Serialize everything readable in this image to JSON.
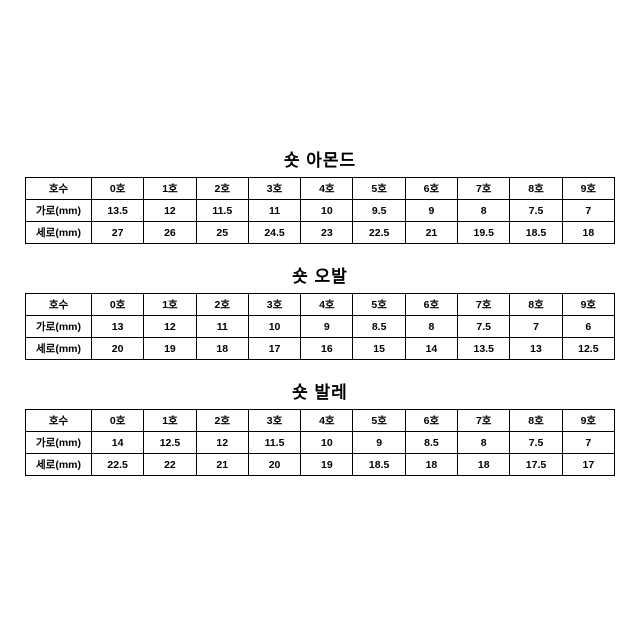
{
  "sections": [
    {
      "title": "숏 아몬드",
      "rows": [
        {
          "label": "호수",
          "values": [
            "0호",
            "1호",
            "2호",
            "3호",
            "4호",
            "5호",
            "6호",
            "7호",
            "8호",
            "9호"
          ]
        },
        {
          "label": "가로(mm)",
          "values": [
            "13.5",
            "12",
            "11.5",
            "11",
            "10",
            "9.5",
            "9",
            "8",
            "7.5",
            "7"
          ]
        },
        {
          "label": "세로(mm)",
          "values": [
            "27",
            "26",
            "25",
            "24.5",
            "23",
            "22.5",
            "21",
            "19.5",
            "18.5",
            "18"
          ]
        }
      ]
    },
    {
      "title": "숏 오발",
      "rows": [
        {
          "label": "호수",
          "values": [
            "0호",
            "1호",
            "2호",
            "3호",
            "4호",
            "5호",
            "6호",
            "7호",
            "8호",
            "9호"
          ]
        },
        {
          "label": "가로(mm)",
          "values": [
            "13",
            "12",
            "11",
            "10",
            "9",
            "8.5",
            "8",
            "7.5",
            "7",
            "6"
          ]
        },
        {
          "label": "세로(mm)",
          "values": [
            "20",
            "19",
            "18",
            "17",
            "16",
            "15",
            "14",
            "13.5",
            "13",
            "12.5"
          ]
        }
      ]
    },
    {
      "title": "숏 발레",
      "rows": [
        {
          "label": "호수",
          "values": [
            "0호",
            "1호",
            "2호",
            "3호",
            "4호",
            "5호",
            "6호",
            "7호",
            "8호",
            "9호"
          ]
        },
        {
          "label": "가로(mm)",
          "values": [
            "14",
            "12.5",
            "12",
            "11.5",
            "10",
            "9",
            "8.5",
            "8",
            "7.5",
            "7"
          ]
        },
        {
          "label": "세로(mm)",
          "values": [
            "22.5",
            "22",
            "21",
            "20",
            "19",
            "18.5",
            "18",
            "18",
            "17.5",
            "17"
          ]
        }
      ]
    }
  ]
}
